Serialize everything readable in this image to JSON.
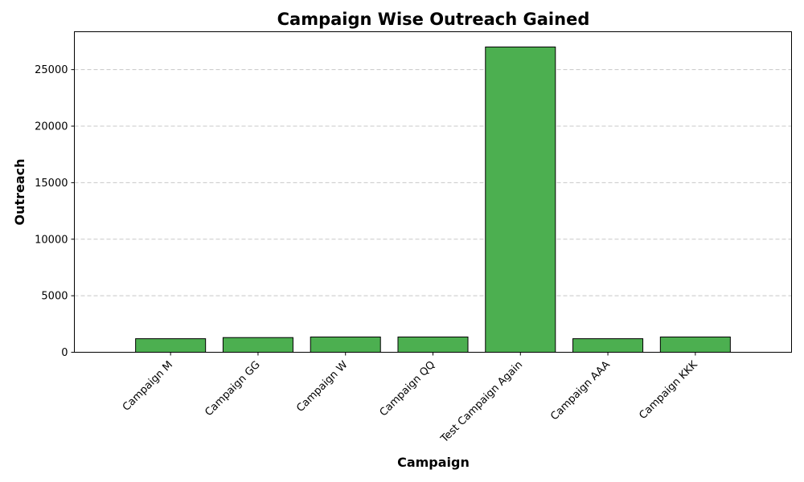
{
  "chart_data": {
    "type": "bar",
    "title": "Campaign Wise Outreach Gained",
    "xlabel": "Campaign",
    "ylabel": "Outreach",
    "categories": [
      "Campaign M",
      "Campaign GG",
      "Campaign W",
      "Campaign QQ",
      "Test Campaign Again",
      "Campaign AAA",
      "Campaign KKK"
    ],
    "values": [
      1200,
      1300,
      1350,
      1350,
      27000,
      1200,
      1350
    ],
    "ylim": [
      0,
      28350
    ],
    "yticks": [
      0,
      5000,
      10000,
      15000,
      20000,
      25000
    ],
    "grid": "y-dashed",
    "bar_color": "#4caf50",
    "edge_color": "#000000",
    "legend": "none"
  }
}
